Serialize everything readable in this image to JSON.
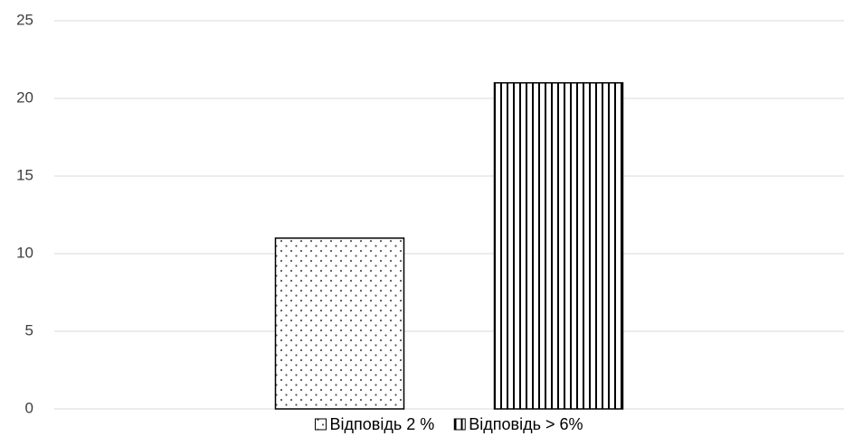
{
  "chart_data": {
    "type": "bar",
    "categories": [
      null
    ],
    "series": [
      {
        "name": "Відповідь 2 %",
        "color": "#000000",
        "pattern": "dots",
        "values": [
          11
        ]
      },
      {
        "name": "Відповідь > 6%",
        "color": "#000000",
        "pattern": "vertical-lines",
        "values": [
          21
        ]
      }
    ],
    "ylim": [
      0,
      25
    ],
    "yticks": [
      0,
      5,
      10,
      15,
      20,
      25
    ],
    "grid": true,
    "legend": "bottom"
  }
}
